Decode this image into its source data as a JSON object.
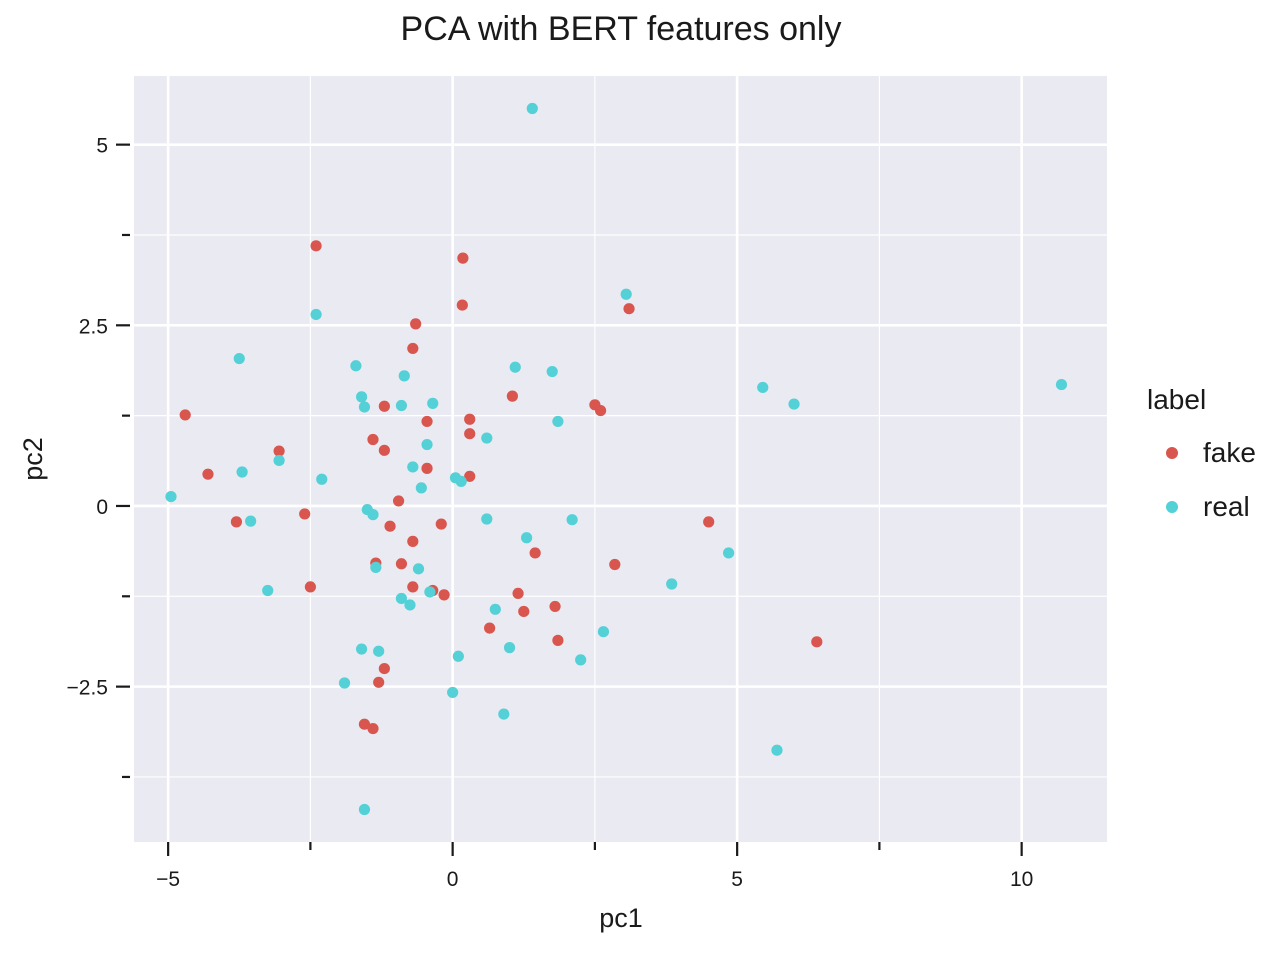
{
  "chart_data": {
    "type": "scatter",
    "title": "PCA with BERT features only",
    "xlabel": "pc1",
    "ylabel": "pc2",
    "xlim": [
      -5.6,
      11.5
    ],
    "ylim": [
      -4.65,
      5.95
    ],
    "x_ticks": [
      {
        "value": -5,
        "label": "−5"
      },
      {
        "value": -2.5,
        "label": ""
      },
      {
        "value": 0,
        "label": "0"
      },
      {
        "value": 2.5,
        "label": ""
      },
      {
        "value": 5,
        "label": "5"
      },
      {
        "value": 7.5,
        "label": ""
      },
      {
        "value": 10,
        "label": "10"
      }
    ],
    "y_ticks": [
      {
        "value": 5,
        "label": "5"
      },
      {
        "value": 3.75,
        "label": ""
      },
      {
        "value": 2.5,
        "label": "2.5"
      },
      {
        "value": 1.25,
        "label": ""
      },
      {
        "value": 0,
        "label": "0"
      },
      {
        "value": -1.25,
        "label": ""
      },
      {
        "value": -2.5,
        "label": "−2.5"
      },
      {
        "value": -3.75,
        "label": ""
      }
    ],
    "grid": true,
    "legend_title": "label",
    "legend_position": "right",
    "series": [
      {
        "name": "fake",
        "color": "#d9564f",
        "points": [
          [
            -2.4,
            3.6
          ],
          [
            0.18,
            3.43
          ],
          [
            0.17,
            2.78
          ],
          [
            -0.65,
            2.52
          ],
          [
            -0.7,
            2.18
          ],
          [
            3.1,
            2.73
          ],
          [
            -4.7,
            1.26
          ],
          [
            1.05,
            1.52
          ],
          [
            2.5,
            1.4
          ],
          [
            2.6,
            1.32
          ],
          [
            -1.2,
            1.38
          ],
          [
            0.3,
            1.2
          ],
          [
            -0.45,
            1.17
          ],
          [
            0.3,
            1.0
          ],
          [
            -1.4,
            0.92
          ],
          [
            -1.2,
            0.77
          ],
          [
            -3.05,
            0.76
          ],
          [
            -0.45,
            0.52
          ],
          [
            -4.3,
            0.44
          ],
          [
            0.3,
            0.41
          ],
          [
            -0.95,
            0.07
          ],
          [
            -2.6,
            -0.11
          ],
          [
            -1.1,
            -0.28
          ],
          [
            -0.2,
            -0.25
          ],
          [
            -3.8,
            -0.22
          ],
          [
            4.5,
            -0.22
          ],
          [
            -0.7,
            -0.49
          ],
          [
            1.45,
            -0.65
          ],
          [
            -1.35,
            -0.79
          ],
          [
            -0.9,
            -0.8
          ],
          [
            2.85,
            -0.81
          ],
          [
            -2.5,
            -1.12
          ],
          [
            -0.7,
            -1.12
          ],
          [
            -0.35,
            -1.17
          ],
          [
            -0.15,
            -1.23
          ],
          [
            1.15,
            -1.21
          ],
          [
            1.8,
            -1.39
          ],
          [
            1.25,
            -1.46
          ],
          [
            0.65,
            -1.69
          ],
          [
            1.85,
            -1.86
          ],
          [
            6.4,
            -1.88
          ],
          [
            -1.2,
            -2.25
          ],
          [
            -1.3,
            -2.44
          ],
          [
            -1.55,
            -3.02
          ],
          [
            -1.4,
            -3.08
          ]
        ]
      },
      {
        "name": "real",
        "color": "#54d0d7",
        "points": [
          [
            1.4,
            5.5
          ],
          [
            3.05,
            2.93
          ],
          [
            -2.4,
            2.65
          ],
          [
            -3.75,
            2.04
          ],
          [
            -1.7,
            1.94
          ],
          [
            1.1,
            1.92
          ],
          [
            1.75,
            1.86
          ],
          [
            -0.85,
            1.8
          ],
          [
            5.45,
            1.64
          ],
          [
            10.7,
            1.68
          ],
          [
            -1.6,
            1.51
          ],
          [
            -0.35,
            1.42
          ],
          [
            -0.9,
            1.39
          ],
          [
            -1.55,
            1.37
          ],
          [
            6.0,
            1.41
          ],
          [
            1.85,
            1.17
          ],
          [
            0.6,
            0.94
          ],
          [
            -0.45,
            0.85
          ],
          [
            -3.05,
            0.63
          ],
          [
            -0.7,
            0.54
          ],
          [
            -3.7,
            0.47
          ],
          [
            -2.3,
            0.37
          ],
          [
            0.05,
            0.39
          ],
          [
            0.15,
            0.34
          ],
          [
            -0.55,
            0.25
          ],
          [
            -4.95,
            0.13
          ],
          [
            -1.5,
            -0.05
          ],
          [
            -1.4,
            -0.12
          ],
          [
            0.6,
            -0.18
          ],
          [
            2.1,
            -0.19
          ],
          [
            -3.55,
            -0.21
          ],
          [
            1.3,
            -0.44
          ],
          [
            4.85,
            -0.65
          ],
          [
            -1.35,
            -0.85
          ],
          [
            -0.6,
            -0.87
          ],
          [
            3.85,
            -1.08
          ],
          [
            -3.25,
            -1.17
          ],
          [
            -0.4,
            -1.19
          ],
          [
            -0.9,
            -1.28
          ],
          [
            -0.75,
            -1.37
          ],
          [
            0.75,
            -1.43
          ],
          [
            2.65,
            -1.74
          ],
          [
            1.0,
            -1.96
          ],
          [
            -1.6,
            -1.98
          ],
          [
            -1.3,
            -2.01
          ],
          [
            0.1,
            -2.08
          ],
          [
            2.25,
            -2.13
          ],
          [
            -1.9,
            -2.45
          ],
          [
            0.0,
            -2.58
          ],
          [
            0.9,
            -2.88
          ],
          [
            5.7,
            -3.38
          ],
          [
            -1.55,
            -4.2
          ]
        ]
      }
    ]
  }
}
